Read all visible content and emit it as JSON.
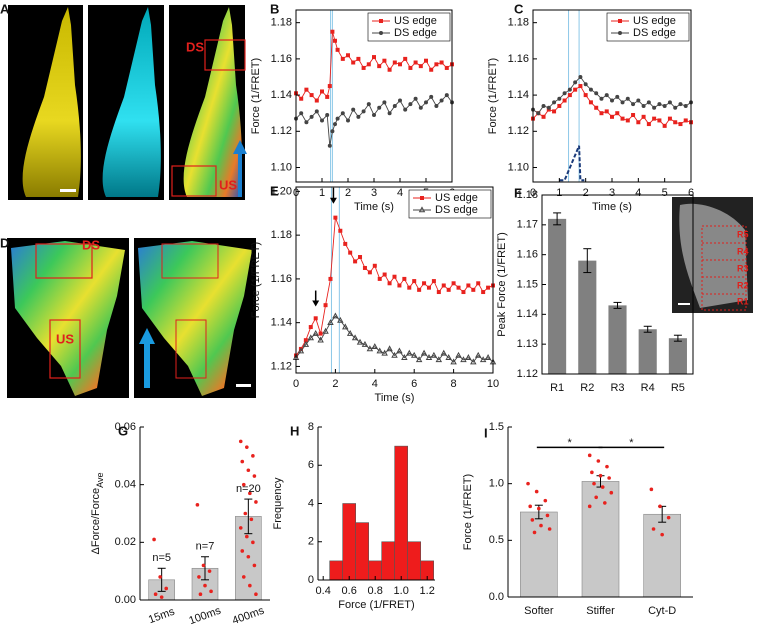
{
  "images": [
    {
      "panel": "A",
      "labels": [
        "DS",
        "US"
      ]
    },
    {
      "panel": "D",
      "labels": [
        "DS",
        "US"
      ]
    }
  ],
  "chart_data": [
    {
      "type": "line",
      "panel": "B",
      "x_label": "Time (s)",
      "y_label": "Force (1/FRET)",
      "frame": "box",
      "xlim": [
        0,
        6
      ],
      "xticks": [
        0,
        1,
        2,
        3,
        4,
        5,
        6
      ],
      "ylim": [
        1.092,
        1.187
      ],
      "yticks": [
        {
          "value": 1.1,
          "label": "1.10"
        },
        1.12,
        1.14,
        1.16,
        1.18
      ],
      "legend": "upper right",
      "vlines": [
        1.33,
        1.4
      ],
      "vline_color": "#8cc8e8",
      "x": [
        0,
        0.2,
        0.4,
        0.6,
        0.8,
        1.0,
        1.2,
        1.3,
        1.4,
        1.5,
        1.6,
        1.8,
        2.0,
        2.2,
        2.4,
        2.6,
        2.8,
        3.0,
        3.2,
        3.4,
        3.6,
        3.8,
        4.0,
        4.2,
        4.4,
        4.6,
        4.8,
        5.0,
        5.2,
        5.4,
        5.6,
        5.8,
        6.0
      ],
      "series": [
        {
          "name": "US edge",
          "color": "#e8221e",
          "marker": "square",
          "values": [
            1.141,
            1.138,
            1.143,
            1.14,
            1.137,
            1.142,
            1.139,
            1.145,
            1.175,
            1.17,
            1.165,
            1.16,
            1.162,
            1.158,
            1.16,
            1.155,
            1.157,
            1.161,
            1.156,
            1.159,
            1.154,
            1.158,
            1.157,
            1.16,
            1.155,
            1.158,
            1.156,
            1.159,
            1.154,
            1.157,
            1.158,
            1.155,
            1.157
          ]
        },
        {
          "name": "DS edge",
          "color": "#444444",
          "marker": "circle",
          "values": [
            1.127,
            1.13,
            1.125,
            1.128,
            1.131,
            1.126,
            1.129,
            1.112,
            1.12,
            1.124,
            1.127,
            1.13,
            1.126,
            1.132,
            1.128,
            1.131,
            1.135,
            1.129,
            1.133,
            1.136,
            1.13,
            1.134,
            1.137,
            1.132,
            1.135,
            1.138,
            1.133,
            1.136,
            1.139,
            1.134,
            1.137,
            1.14,
            1.136
          ]
        }
      ]
    },
    {
      "type": "line",
      "panel": "C",
      "x_label": "Time (s)",
      "y_label": "Force (1/FRET)",
      "frame": "box",
      "xlim": [
        0,
        6
      ],
      "xticks": [
        0,
        1,
        2,
        3,
        4,
        5,
        6
      ],
      "ylim": [
        1.092,
        1.187
      ],
      "yticks": [
        {
          "value": 1.1,
          "label": "1.10"
        },
        1.12,
        1.14,
        1.16,
        1.18
      ],
      "legend": "upper right",
      "vlines": [
        1.35,
        1.75
      ],
      "vline_color": "#8cc8e8",
      "pulse": {
        "color": "#1a3a7a",
        "x": [
          1.0,
          1.2,
          1.75,
          1.8,
          1.95
        ],
        "y": [
          1.093,
          1.093,
          1.112,
          1.093,
          1.093
        ]
      },
      "x": [
        0,
        0.2,
        0.4,
        0.6,
        0.8,
        1.0,
        1.2,
        1.4,
        1.6,
        1.8,
        2.0,
        2.2,
        2.4,
        2.6,
        2.8,
        3.0,
        3.2,
        3.4,
        3.6,
        3.8,
        4.0,
        4.2,
        4.4,
        4.6,
        4.8,
        5.0,
        5.2,
        5.4,
        5.6,
        5.8,
        6.0
      ],
      "series": [
        {
          "name": "US edge",
          "color": "#e8221e",
          "marker": "square",
          "values": [
            1.127,
            1.13,
            1.128,
            1.132,
            1.131,
            1.134,
            1.137,
            1.14,
            1.143,
            1.145,
            1.14,
            1.136,
            1.133,
            1.13,
            1.131,
            1.128,
            1.13,
            1.127,
            1.126,
            1.129,
            1.125,
            1.128,
            1.124,
            1.127,
            1.126,
            1.123,
            1.127,
            1.125,
            1.124,
            1.126,
            1.125
          ]
        },
        {
          "name": "DS edge",
          "color": "#444444",
          "marker": "circle",
          "values": [
            1.132,
            1.13,
            1.134,
            1.133,
            1.136,
            1.138,
            1.141,
            1.143,
            1.147,
            1.15,
            1.146,
            1.143,
            1.141,
            1.138,
            1.14,
            1.137,
            1.139,
            1.136,
            1.138,
            1.135,
            1.137,
            1.134,
            1.136,
            1.133,
            1.135,
            1.134,
            1.136,
            1.133,
            1.135,
            1.134,
            1.136
          ]
        }
      ]
    },
    {
      "type": "line",
      "panel": "E",
      "x_label": "Time (s)",
      "y_label": "Force (1/FRET)",
      "frame": "box",
      "xlim": [
        0,
        10
      ],
      "xticks": [
        0,
        2,
        4,
        6,
        8,
        10
      ],
      "ylim": [
        1.117,
        1.202
      ],
      "yticks": [
        1.12,
        1.14,
        1.16,
        1.18,
        {
          "value": 1.2,
          "label": "1.20"
        }
      ],
      "legend": "upper right",
      "vlines": [
        1.8,
        2.2
      ],
      "vline_color": "#8cc8e8",
      "arrows": [
        {
          "x": 1.0,
          "y": 1.146
        },
        {
          "x": 1.9,
          "y": 1.193
        }
      ],
      "x": [
        0,
        0.25,
        0.5,
        0.75,
        1,
        1.25,
        1.5,
        1.75,
        2,
        2.25,
        2.5,
        2.75,
        3,
        3.25,
        3.5,
        3.75,
        4,
        4.25,
        4.5,
        4.75,
        5,
        5.25,
        5.5,
        5.75,
        6,
        6.25,
        6.5,
        6.75,
        7,
        7.25,
        7.5,
        7.75,
        8,
        8.25,
        8.5,
        8.75,
        9,
        9.25,
        9.5,
        9.75,
        10
      ],
      "series": [
        {
          "name": "US edge",
          "color": "#e8221e",
          "marker": "square",
          "values": [
            1.125,
            1.128,
            1.132,
            1.138,
            1.142,
            1.135,
            1.148,
            1.16,
            1.188,
            1.182,
            1.176,
            1.172,
            1.168,
            1.17,
            1.165,
            1.163,
            1.166,
            1.16,
            1.162,
            1.158,
            1.161,
            1.157,
            1.16,
            1.156,
            1.159,
            1.155,
            1.158,
            1.156,
            1.159,
            1.154,
            1.157,
            1.155,
            1.158,
            1.156,
            1.154,
            1.157,
            1.155,
            1.158,
            1.154,
            1.156,
            1.157
          ]
        },
        {
          "name": "DS edge",
          "color": "#444444",
          "marker": "triangle",
          "values": [
            1.124,
            1.127,
            1.13,
            1.133,
            1.135,
            1.132,
            1.136,
            1.14,
            1.143,
            1.141,
            1.138,
            1.135,
            1.133,
            1.131,
            1.13,
            1.128,
            1.129,
            1.127,
            1.126,
            1.128,
            1.125,
            1.127,
            1.124,
            1.126,
            1.125,
            1.123,
            1.126,
            1.124,
            1.125,
            1.123,
            1.126,
            1.124,
            1.122,
            1.125,
            1.123,
            1.124,
            1.122,
            1.125,
            1.123,
            1.124,
            1.122
          ]
        }
      ]
    },
    {
      "type": "bar",
      "panel": "F",
      "y_label": "Peak Force (1/FRET)",
      "frame": "box",
      "color": "#808080",
      "categories": [
        "R1",
        "R2",
        "R3",
        "R4",
        "R5"
      ],
      "values": [
        1.172,
        1.158,
        1.143,
        1.135,
        1.132
      ],
      "errors": [
        0.002,
        0.004,
        0.001,
        0.001,
        0.001
      ],
      "ylim": [
        1.12,
        1.18
      ],
      "yticks": [
        1.12,
        1.13,
        1.14,
        1.15,
        1.16,
        1.17,
        1.18
      ],
      "inset_labels": [
        "R5",
        "R4",
        "R3",
        "R2",
        "R1"
      ]
    },
    {
      "type": "bar",
      "panel": "G",
      "y_label": "ΔForce/Force",
      "y_label_sub": "Ave",
      "frame": "axes",
      "color": "#c8c8c8",
      "point_color": "#e8221e",
      "rotate_categories": true,
      "categories": [
        "15ms",
        "100ms",
        "400ms"
      ],
      "values": [
        0.007,
        0.011,
        0.029
      ],
      "errors": [
        0.004,
        0.004,
        0.006
      ],
      "value_notes": [
        "n=5",
        "n=7",
        "n=20"
      ],
      "points": [
        [
          0.021,
          0.008,
          0.004,
          0.002,
          0.001
        ],
        [
          0.033,
          0.012,
          0.01,
          0.008,
          0.005,
          0.003,
          0.002
        ],
        [
          0.055,
          0.053,
          0.05,
          0.048,
          0.045,
          0.043,
          0.04,
          0.037,
          0.034,
          0.03,
          0.028,
          0.025,
          0.022,
          0.02,
          0.017,
          0.015,
          0.012,
          0.008,
          0.005,
          0.002
        ]
      ],
      "ylim": [
        0,
        0.06
      ],
      "yticks": [
        {
          "value": 0,
          "label": "0.00"
        },
        0.02,
        0.04,
        0.06
      ]
    },
    {
      "type": "histogram",
      "panel": "H",
      "x_label": "Force (1/FRET)",
      "y_label": "Frequency",
      "frame": "axes",
      "color": "#ee1c1c",
      "bins": [
        0.45,
        0.55,
        0.65,
        0.75,
        0.85,
        0.95,
        1.05,
        1.15,
        1.25
      ],
      "counts": [
        1,
        4,
        3,
        1,
        2,
        7,
        2,
        1
      ],
      "xlim": [
        0.36,
        1.26
      ],
      "xticks": [
        0.4,
        0.6,
        0.8,
        {
          "value": 1,
          "label": "1.0"
        },
        1.2
      ],
      "ylim": [
        0,
        8
      ],
      "yticks": [
        0,
        2,
        4,
        6,
        8
      ]
    },
    {
      "type": "bar",
      "panel": "I",
      "y_label": "Force (1/FRET)",
      "frame": "axes",
      "color": "#c8c8c8",
      "point_color": "#e8221e",
      "categories": [
        "Softer",
        "Stiffer",
        "Cyt-D"
      ],
      "values": [
        0.75,
        1.02,
        0.73
      ],
      "errors": [
        0.06,
        0.05,
        0.07
      ],
      "points": [
        [
          1.0,
          0.93,
          0.85,
          0.8,
          0.78,
          0.72,
          0.68,
          0.63,
          0.6,
          0.57
        ],
        [
          1.25,
          1.2,
          1.15,
          1.1,
          1.07,
          1.05,
          1.0,
          0.97,
          0.92,
          0.88,
          0.83,
          0.8
        ],
        [
          0.95,
          0.8,
          0.7,
          0.6,
          0.55
        ]
      ],
      "brackets": [
        {
          "from": "Softer",
          "to": "Stiffer",
          "label": "*"
        },
        {
          "from": "Stiffer",
          "to": "Cyt-D",
          "label": "*"
        }
      ],
      "ylim": [
        0,
        1.5
      ],
      "yticks": [
        {
          "value": 0,
          "label": "0.0"
        },
        0.5,
        {
          "value": 1,
          "label": "1.0"
        },
        1.5
      ]
    }
  ]
}
